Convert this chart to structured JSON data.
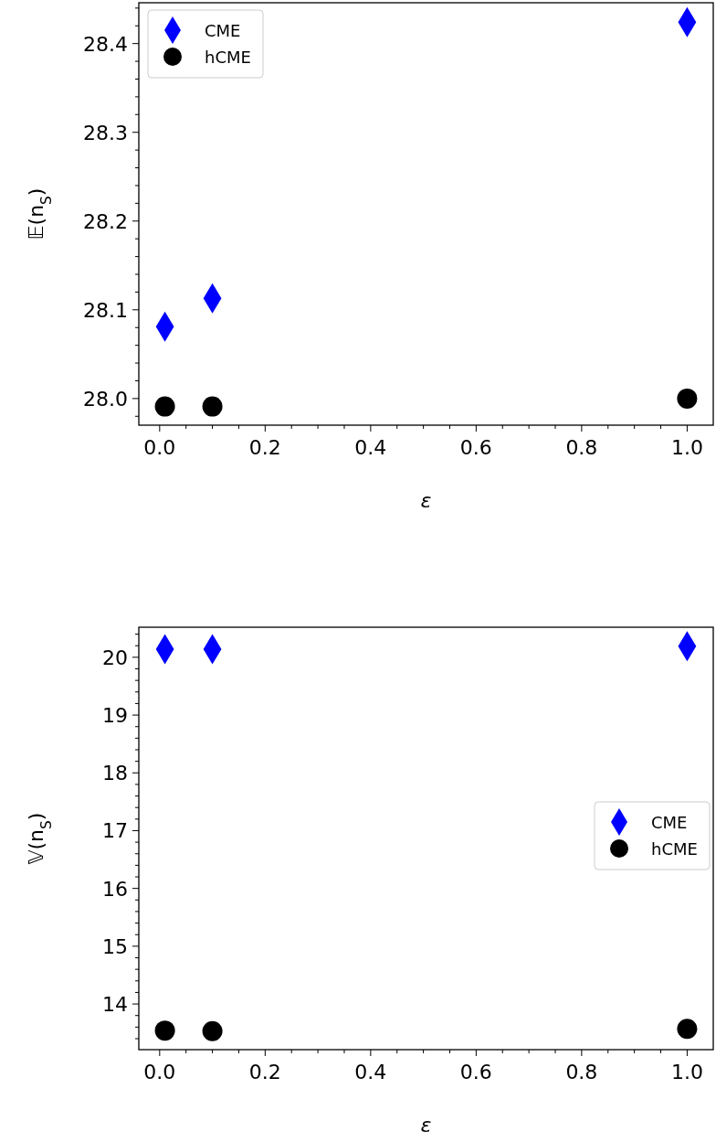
{
  "chart_data": [
    {
      "type": "scatter",
      "xlabel": "ε",
      "ylabel": "𝔼(n$_{S}$)",
      "xlim": [
        -0.0395,
        1.0495
      ],
      "ylim": [
        27.97,
        28.446
      ],
      "xticks": [
        {
          "value": 0,
          "label": "0.0"
        },
        {
          "value": 0.05,
          "label": null
        },
        {
          "value": 0.1,
          "label": null
        },
        {
          "value": 0.15,
          "label": null
        },
        {
          "value": 0.2,
          "label": "0.2"
        },
        {
          "value": 0.25,
          "label": null
        },
        {
          "value": 0.3,
          "label": null
        },
        {
          "value": 0.35,
          "label": null
        },
        {
          "value": 0.4,
          "label": "0.4"
        },
        {
          "value": 0.45,
          "label": null
        },
        {
          "value": 0.5,
          "label": null
        },
        {
          "value": 0.55,
          "label": null
        },
        {
          "value": 0.6,
          "label": "0.6"
        },
        {
          "value": 0.65,
          "label": null
        },
        {
          "value": 0.7,
          "label": null
        },
        {
          "value": 0.75,
          "label": null
        },
        {
          "value": 0.8,
          "label": "0.8"
        },
        {
          "value": 0.85,
          "label": null
        },
        {
          "value": 0.9,
          "label": null
        },
        {
          "value": 0.95,
          "label": null
        },
        {
          "value": 1,
          "label": "1.0"
        }
      ],
      "yticks": [
        {
          "value": 27.98,
          "label": null
        },
        {
          "value": 28,
          "label": "28.0"
        },
        {
          "value": 28.02,
          "label": null
        },
        {
          "value": 28.04,
          "label": null
        },
        {
          "value": 28.06,
          "label": null
        },
        {
          "value": 28.08,
          "label": null
        },
        {
          "value": 28.1,
          "label": "28.1"
        },
        {
          "value": 28.12,
          "label": null
        },
        {
          "value": 28.14,
          "label": null
        },
        {
          "value": 28.16,
          "label": null
        },
        {
          "value": 28.18,
          "label": null
        },
        {
          "value": 28.2,
          "label": "28.2"
        },
        {
          "value": 28.22,
          "label": null
        },
        {
          "value": 28.24,
          "label": null
        },
        {
          "value": 28.26,
          "label": null
        },
        {
          "value": 28.28,
          "label": null
        },
        {
          "value": 28.3,
          "label": "28.3"
        },
        {
          "value": 28.32,
          "label": null
        },
        {
          "value": 28.34,
          "label": null
        },
        {
          "value": 28.36,
          "label": null
        },
        {
          "value": 28.38,
          "label": null
        },
        {
          "value": 28.4,
          "label": "28.4"
        },
        {
          "value": 28.42,
          "label": null
        },
        {
          "value": 28.44,
          "label": null
        }
      ],
      "legend": "top left",
      "grid": false,
      "series": [
        {
          "name": "CME",
          "color": "#0000ff",
          "marker": "diamond",
          "x": [
            0.01,
            0.1,
            1.0
          ],
          "values": [
            28.081,
            28.113,
            28.424
          ]
        },
        {
          "name": "hCME",
          "color": "#000000",
          "marker": "circle",
          "x": [
            0.01,
            0.1,
            1.0
          ],
          "values": [
            27.991,
            27.991,
            28.0
          ]
        }
      ]
    },
    {
      "type": "scatter",
      "xlabel": "ε",
      "ylabel": "𝕍(n$_{S}$)",
      "xlim": [
        -0.0395,
        1.0495
      ],
      "ylim": [
        13.21,
        20.52
      ],
      "xticks": [
        {
          "value": 0,
          "label": "0.0"
        },
        {
          "value": 0.05,
          "label": null
        },
        {
          "value": 0.1,
          "label": null
        },
        {
          "value": 0.15,
          "label": null
        },
        {
          "value": 0.2,
          "label": "0.2"
        },
        {
          "value": 0.25,
          "label": null
        },
        {
          "value": 0.3,
          "label": null
        },
        {
          "value": 0.35,
          "label": null
        },
        {
          "value": 0.4,
          "label": "0.4"
        },
        {
          "value": 0.45,
          "label": null
        },
        {
          "value": 0.5,
          "label": null
        },
        {
          "value": 0.55,
          "label": null
        },
        {
          "value": 0.6,
          "label": "0.6"
        },
        {
          "value": 0.65,
          "label": null
        },
        {
          "value": 0.7,
          "label": null
        },
        {
          "value": 0.75,
          "label": null
        },
        {
          "value": 0.8,
          "label": "0.8"
        },
        {
          "value": 0.85,
          "label": null
        },
        {
          "value": 0.9,
          "label": null
        },
        {
          "value": 0.95,
          "label": null
        },
        {
          "value": 1,
          "label": "1.0"
        }
      ],
      "yticks": [
        {
          "value": 13.4,
          "label": null
        },
        {
          "value": 13.6,
          "label": null
        },
        {
          "value": 13.8,
          "label": null
        },
        14,
        {
          "value": 14.2,
          "label": null
        },
        {
          "value": 14.4,
          "label": null
        },
        {
          "value": 14.6,
          "label": null
        },
        {
          "value": 14.8,
          "label": null
        },
        15,
        {
          "value": 15.2,
          "label": null
        },
        {
          "value": 15.4,
          "label": null
        },
        {
          "value": 15.6,
          "label": null
        },
        {
          "value": 15.8,
          "label": null
        },
        16,
        {
          "value": 16.2,
          "label": null
        },
        {
          "value": 16.4,
          "label": null
        },
        {
          "value": 16.6,
          "label": null
        },
        {
          "value": 16.8,
          "label": null
        },
        17,
        {
          "value": 17.2,
          "label": null
        },
        {
          "value": 17.4,
          "label": null
        },
        {
          "value": 17.6,
          "label": null
        },
        {
          "value": 17.8,
          "label": null
        },
        18,
        {
          "value": 18.2,
          "label": null
        },
        {
          "value": 18.4,
          "label": null
        },
        {
          "value": 18.6,
          "label": null
        },
        {
          "value": 18.8,
          "label": null
        },
        19,
        {
          "value": 19.2,
          "label": null
        },
        {
          "value": 19.4,
          "label": null
        },
        {
          "value": 19.6,
          "label": null
        },
        {
          "value": 19.8,
          "label": null
        },
        20,
        {
          "value": 20.2,
          "label": null
        },
        {
          "value": 20.4,
          "label": null
        }
      ],
      "legend": "right",
      "grid": false,
      "series": [
        {
          "name": "CME",
          "color": "#0000ff",
          "marker": "diamond",
          "x": [
            0.01,
            0.1,
            1.0
          ],
          "values": [
            20.14,
            20.14,
            20.19
          ]
        },
        {
          "name": "hCME",
          "color": "#000000",
          "marker": "circle",
          "x": [
            0.01,
            0.1,
            1.0
          ],
          "values": [
            13.54,
            13.53,
            13.57
          ]
        }
      ]
    }
  ]
}
